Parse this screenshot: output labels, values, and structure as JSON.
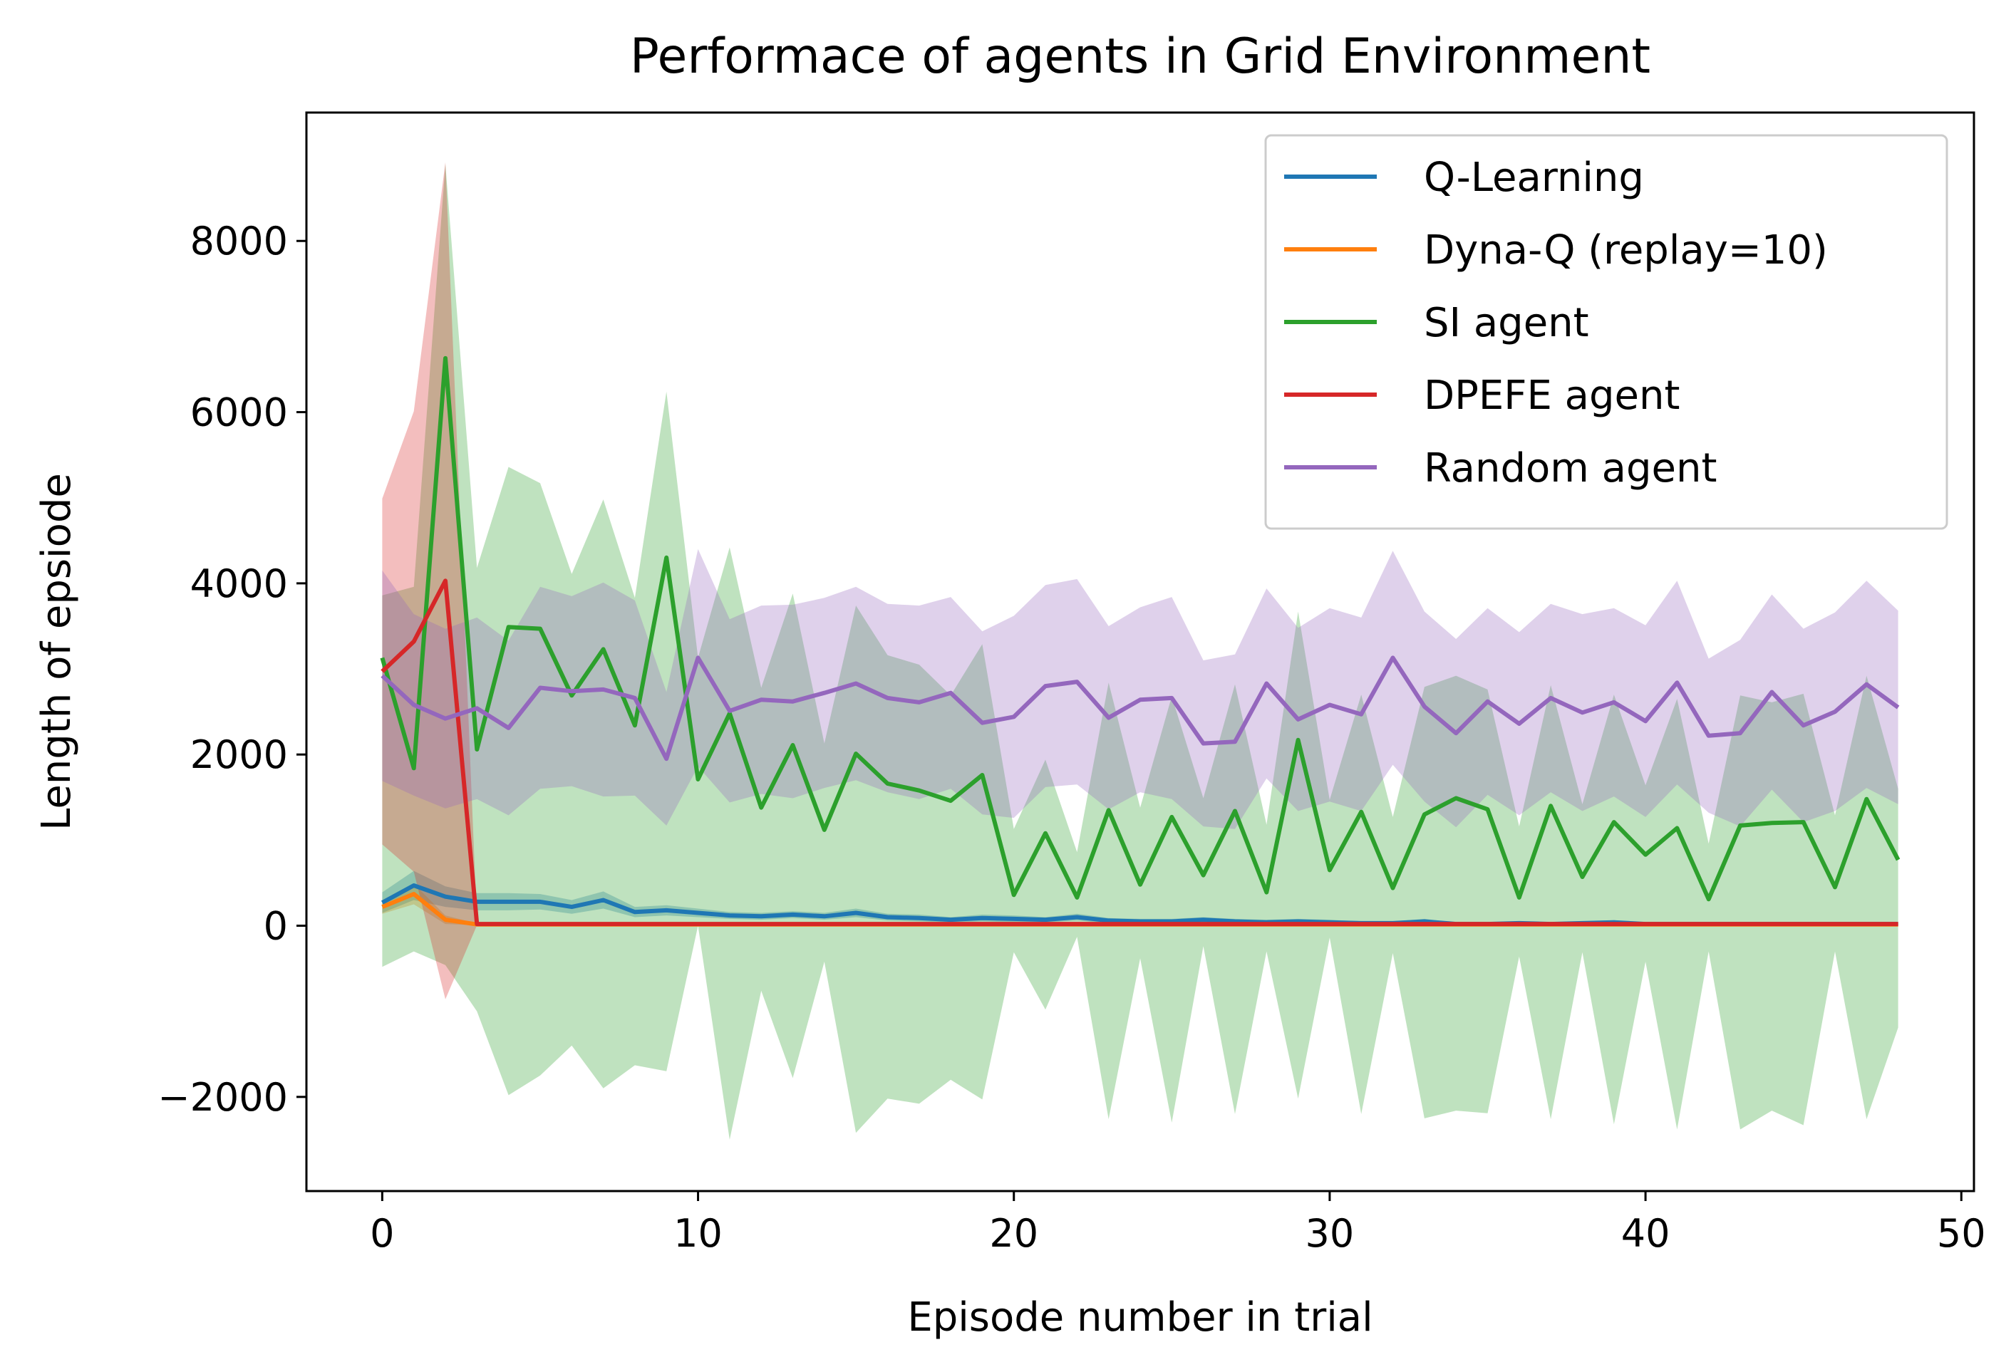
{
  "chart_data": {
    "type": "line",
    "title": "Performace of agents in Grid Environment",
    "xlabel": "Episode number in trial",
    "ylabel": "Length of epsiode",
    "xlim": [
      -2.4,
      50.4
    ],
    "ylim": [
      -3100,
      9500
    ],
    "xticks": [
      0,
      10,
      20,
      30,
      40,
      50
    ],
    "yticks": [
      -2000,
      0,
      2000,
      4000,
      6000,
      8000
    ],
    "ytick_labels": [
      "−2000",
      "0",
      "2000",
      "4000",
      "6000",
      "8000"
    ],
    "grid": false,
    "legend_position": "top-right",
    "x": [
      0,
      1,
      2,
      3,
      4,
      5,
      6,
      7,
      8,
      9,
      10,
      11,
      12,
      13,
      14,
      15,
      16,
      17,
      18,
      19,
      20,
      21,
      22,
      23,
      24,
      25,
      26,
      27,
      28,
      29,
      30,
      31,
      32,
      33,
      34,
      35,
      36,
      37,
      38,
      39,
      40,
      41,
      42,
      43,
      44,
      45,
      46,
      47,
      48
    ],
    "series": [
      {
        "name": "Q-Learning",
        "color": "#1f77b4",
        "values": [
          270,
          470,
          340,
          280,
          280,
          280,
          220,
          300,
          160,
          180,
          150,
          120,
          110,
          130,
          110,
          150,
          100,
          90,
          70,
          90,
          80,
          70,
          100,
          60,
          50,
          50,
          70,
          50,
          40,
          50,
          40,
          30,
          30,
          50,
          20,
          20,
          30,
          20,
          30,
          40,
          20,
          20,
          20,
          20,
          20,
          20,
          20,
          20,
          20
        ],
        "lower": [
          150,
          300,
          220,
          180,
          180,
          190,
          140,
          200,
          100,
          120,
          100,
          80,
          70,
          90,
          70,
          100,
          60,
          50,
          40,
          50,
          40,
          40,
          60,
          30,
          20,
          20,
          40,
          20,
          10,
          20,
          10,
          10,
          10,
          20,
          5,
          5,
          10,
          5,
          10,
          15,
          5,
          5,
          5,
          5,
          5,
          5,
          5,
          5,
          5
        ],
        "upper": [
          390,
          640,
          460,
          380,
          380,
          370,
          300,
          400,
          220,
          240,
          200,
          160,
          150,
          170,
          150,
          200,
          140,
          130,
          100,
          130,
          120,
          100,
          140,
          90,
          80,
          80,
          100,
          80,
          70,
          80,
          70,
          50,
          50,
          80,
          35,
          35,
          50,
          35,
          50,
          65,
          35,
          35,
          35,
          35,
          35,
          35,
          35,
          35,
          35
        ]
      },
      {
        "name": "Dyna-Q (replay=10)",
        "color": "#ff7f0e",
        "values": [
          220,
          370,
          70,
          15,
          15,
          15,
          15,
          15,
          15,
          15,
          15,
          15,
          15,
          15,
          15,
          15,
          15,
          15,
          15,
          15,
          15,
          15,
          15,
          15,
          15,
          15,
          15,
          15,
          15,
          15,
          15,
          15,
          15,
          15,
          15,
          15,
          15,
          15,
          15,
          15,
          15,
          15,
          15,
          15,
          15,
          15,
          15,
          15,
          15
        ],
        "lower": [
          140,
          250,
          20,
          5,
          5,
          5,
          5,
          5,
          5,
          5,
          5,
          5,
          5,
          5,
          5,
          5,
          5,
          5,
          5,
          5,
          5,
          5,
          5,
          5,
          5,
          5,
          5,
          5,
          5,
          5,
          5,
          5,
          5,
          5,
          5,
          5,
          5,
          5,
          5,
          5,
          5,
          5,
          5,
          5,
          5,
          5,
          5,
          5,
          5
        ],
        "upper": [
          300,
          490,
          120,
          25,
          25,
          25,
          25,
          25,
          25,
          25,
          25,
          25,
          25,
          25,
          25,
          25,
          25,
          25,
          25,
          25,
          25,
          25,
          25,
          25,
          25,
          25,
          25,
          25,
          25,
          25,
          25,
          25,
          25,
          25,
          25,
          25,
          25,
          25,
          25,
          25,
          25,
          25,
          25,
          25,
          25,
          25,
          25,
          25,
          25
        ]
      },
      {
        "name": "SI agent",
        "color": "#2ca02c",
        "fill": "#2ca02c",
        "values": [
          3130,
          1840,
          6630,
          2060,
          3490,
          3470,
          2690,
          3230,
          2340,
          4300,
          1710,
          2480,
          1380,
          2110,
          1120,
          2010,
          1660,
          1580,
          1460,
          1760,
          360,
          1080,
          330,
          1350,
          480,
          1270,
          590,
          1340,
          390,
          2170,
          650,
          1330,
          440,
          1300,
          1490,
          1360,
          330,
          1400,
          570,
          1210,
          830,
          1140,
          310,
          1170,
          1200,
          1210,
          450,
          1480,
          770
        ],
        "lower": [
          -480,
          -300,
          -460,
          -1000,
          -1980,
          -1750,
          -1400,
          -1900,
          -1630,
          -1700,
          0,
          -2500,
          -760,
          -1780,
          -420,
          -2420,
          -2020,
          -2080,
          -1800,
          -2030,
          -310,
          -980,
          -130,
          -2260,
          -380,
          -2300,
          -240,
          -2200,
          -300,
          -2020,
          -140,
          -2200,
          -320,
          -2250,
          -2160,
          -2190,
          -360,
          -2260,
          -310,
          -2320,
          -420,
          -2380,
          -300,
          -2380,
          -2160,
          -2330,
          -300,
          -2260,
          -1190
        ],
        "upper": [
          3860,
          3960,
          8900,
          4180,
          5360,
          5170,
          4110,
          4980,
          3830,
          6240,
          3130,
          4420,
          2780,
          3880,
          2130,
          3740,
          3160,
          3050,
          2690,
          3290,
          1130,
          1940,
          860,
          2840,
          1380,
          2680,
          1490,
          2820,
          1180,
          3670,
          1470,
          2700,
          1270,
          2790,
          2920,
          2760,
          1160,
          2810,
          1420,
          2700,
          1640,
          2650,
          960,
          2690,
          2610,
          2710,
          1290,
          2920,
          1600
        ]
      },
      {
        "name": "DPEFE agent",
        "color": "#d62728",
        "fill": "#d62728",
        "values": [
          2970,
          3320,
          4030,
          20,
          20,
          20,
          20,
          20,
          20,
          20,
          20,
          20,
          20,
          20,
          20,
          20,
          20,
          20,
          20,
          20,
          20,
          20,
          20,
          20,
          20,
          20,
          20,
          20,
          20,
          20,
          20,
          20,
          20,
          20,
          20,
          20,
          20,
          20,
          20,
          20,
          20,
          20,
          20,
          20,
          20,
          20,
          20,
          20,
          20
        ],
        "lower": [
          950,
          630,
          -860,
          5,
          5,
          5,
          5,
          5,
          5,
          5,
          5,
          5,
          5,
          5,
          5,
          5,
          5,
          5,
          5,
          5,
          5,
          5,
          5,
          5,
          5,
          5,
          5,
          5,
          5,
          5,
          5,
          5,
          5,
          5,
          5,
          5,
          5,
          5,
          5,
          5,
          5,
          5,
          5,
          5,
          5,
          5,
          5,
          5,
          5
        ],
        "upper": [
          4990,
          6010,
          8920,
          35,
          35,
          35,
          35,
          35,
          35,
          35,
          35,
          35,
          35,
          35,
          35,
          35,
          35,
          35,
          35,
          35,
          35,
          35,
          35,
          35,
          35,
          35,
          35,
          35,
          35,
          35,
          35,
          35,
          35,
          35,
          35,
          35,
          35,
          35,
          35,
          35,
          35,
          35,
          35,
          35,
          35,
          35,
          35,
          35,
          35
        ]
      },
      {
        "name": "Random agent",
        "color": "#9467bd",
        "fill": "#9467bd",
        "values": [
          2920,
          2580,
          2420,
          2540,
          2310,
          2780,
          2740,
          2760,
          2660,
          1950,
          3130,
          2510,
          2640,
          2620,
          2720,
          2830,
          2660,
          2610,
          2720,
          2370,
          2440,
          2800,
          2850,
          2430,
          2640,
          2660,
          2130,
          2150,
          2830,
          2410,
          2580,
          2470,
          3130,
          2560,
          2250,
          2620,
          2360,
          2660,
          2490,
          2610,
          2390,
          2840,
          2220,
          2250,
          2730,
          2340,
          2500,
          2820,
          2550
        ],
        "lower": [
          1690,
          1520,
          1370,
          1480,
          1290,
          1600,
          1630,
          1510,
          1520,
          1170,
          1860,
          1440,
          1540,
          1490,
          1610,
          1700,
          1560,
          1480,
          1600,
          1300,
          1260,
          1620,
          1650,
          1360,
          1560,
          1480,
          1160,
          1130,
          1720,
          1340,
          1450,
          1340,
          1880,
          1450,
          1150,
          1530,
          1290,
          1560,
          1340,
          1510,
          1270,
          1650,
          1320,
          1160,
          1590,
          1210,
          1340,
          1610,
          1420
        ],
        "upper": [
          4150,
          3640,
          3470,
          3600,
          3330,
          3960,
          3850,
          4010,
          3800,
          2730,
          4400,
          3580,
          3740,
          3750,
          3830,
          3960,
          3760,
          3740,
          3840,
          3440,
          3620,
          3980,
          4050,
          3500,
          3720,
          3840,
          3100,
          3170,
          3940,
          3480,
          3710,
          3600,
          4380,
          3670,
          3350,
          3710,
          3430,
          3760,
          3640,
          3710,
          3510,
          4030,
          3120,
          3340,
          3870,
          3470,
          3660,
          4030,
          3680
        ]
      }
    ]
  }
}
